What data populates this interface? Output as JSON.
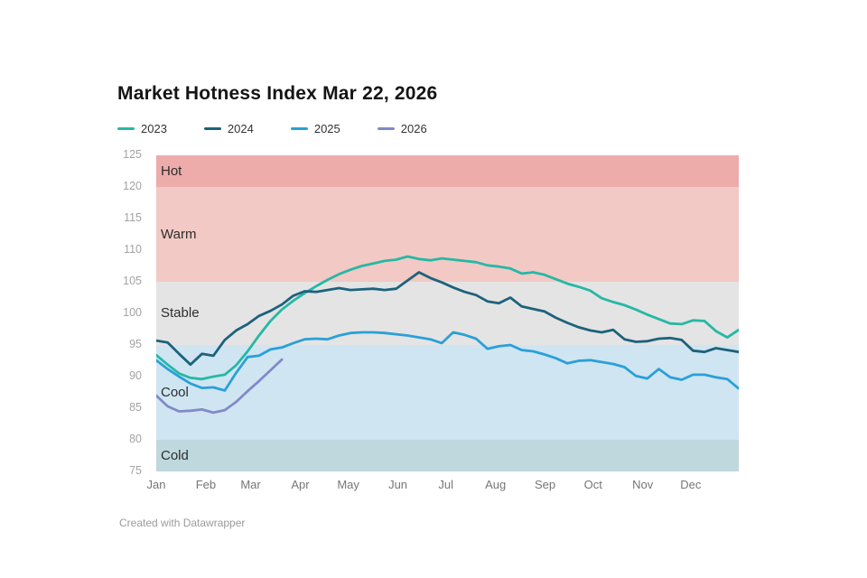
{
  "header": {
    "title": "Market Hotness Index Mar 22, 2026"
  },
  "legend": {
    "items": [
      {
        "label": "2023",
        "color": "#26b8a5"
      },
      {
        "label": "2024",
        "color": "#1d627c"
      },
      {
        "label": "2025",
        "color": "#2aa0d8"
      },
      {
        "label": "2026",
        "color": "#8289c8"
      }
    ]
  },
  "chart_data": {
    "type": "line",
    "title": "Market Hotness Index Mar 22, 2026",
    "xlabel": "",
    "ylabel": "",
    "grid": "off",
    "legend_position": "top-left",
    "x_axis": {
      "tick_labels": [
        "Jan",
        "Feb",
        "Mar",
        "Apr",
        "May",
        "Jun",
        "Jul",
        "Aug",
        "Sep",
        "Oct",
        "Nov",
        "Dec"
      ],
      "points_per_year": 52,
      "note": "weekly values across one calendar year"
    },
    "y_axis": {
      "min": 75,
      "max": 125,
      "ticks": [
        125,
        120,
        115,
        110,
        105,
        100,
        95,
        90,
        85,
        80,
        75
      ]
    },
    "zones": [
      {
        "label": "Hot",
        "from": 120,
        "to": 125,
        "color": "#edabaa"
      },
      {
        "label": "Warm",
        "from": 105,
        "to": 120,
        "color": "#f2c9c4"
      },
      {
        "label": "Stable",
        "from": 95,
        "to": 105,
        "color": "#e4e4e4"
      },
      {
        "label": "Cool",
        "from": 80,
        "to": 95,
        "color": "#cfe5f2"
      },
      {
        "label": "Cold",
        "from": 75,
        "to": 80,
        "color": "#bed8dd"
      }
    ],
    "series": [
      {
        "name": "2023",
        "color": "#26b8a5",
        "values": [
          93.4,
          91.9,
          90.5,
          89.8,
          89.6,
          90.0,
          90.3,
          91.8,
          94.0,
          96.5,
          98.8,
          100.6,
          102.0,
          103.2,
          104.3,
          105.3,
          106.2,
          106.9,
          107.5,
          107.9,
          108.3,
          108.5,
          109.0,
          108.6,
          108.4,
          108.7,
          108.5,
          108.3,
          108.1,
          107.6,
          107.4,
          107.1,
          106.3,
          106.5,
          106.1,
          105.4,
          104.7,
          104.2,
          103.6,
          102.4,
          101.8,
          101.3,
          100.6,
          99.8,
          99.1,
          98.4,
          98.3,
          98.9,
          98.8,
          97.2,
          96.2,
          97.4
        ]
      },
      {
        "name": "2024",
        "color": "#1d627c",
        "values": [
          95.7,
          95.4,
          93.6,
          91.9,
          93.6,
          93.3,
          95.8,
          97.3,
          98.3,
          99.6,
          100.4,
          101.4,
          102.8,
          103.5,
          103.4,
          103.7,
          104.0,
          103.7,
          103.8,
          103.9,
          103.7,
          103.9,
          105.2,
          106.5,
          105.6,
          104.9,
          104.1,
          103.4,
          102.9,
          101.9,
          101.6,
          102.5,
          101.1,
          100.7,
          100.3,
          99.3,
          98.5,
          97.8,
          97.3,
          97.0,
          97.4,
          95.9,
          95.5,
          95.6,
          96.0,
          96.1,
          95.8,
          94.1,
          93.9,
          94.5,
          94.2,
          93.9
        ]
      },
      {
        "name": "2025",
        "color": "#2aa0d8",
        "values": [
          92.6,
          91.2,
          90.0,
          88.9,
          88.2,
          88.3,
          87.8,
          90.6,
          93.1,
          93.3,
          94.3,
          94.6,
          95.3,
          95.9,
          96.0,
          95.9,
          96.5,
          96.9,
          97.0,
          97.0,
          96.9,
          96.7,
          96.5,
          96.2,
          95.9,
          95.3,
          97.0,
          96.6,
          96.0,
          94.4,
          94.8,
          95.0,
          94.2,
          94.0,
          93.5,
          92.9,
          92.1,
          92.5,
          92.6,
          92.3,
          92.0,
          91.5,
          90.1,
          89.7,
          91.2,
          89.9,
          89.5,
          90.3,
          90.3,
          89.9,
          89.6,
          88.1
        ]
      },
      {
        "name": "2026",
        "color": "#8289c8",
        "values": [
          87.0,
          85.3,
          84.5,
          84.6,
          84.8,
          84.3,
          84.7,
          86.0,
          87.7,
          89.3,
          91.0,
          92.7
        ]
      }
    ]
  },
  "footer": {
    "attribution": "Created with Datawrapper"
  }
}
